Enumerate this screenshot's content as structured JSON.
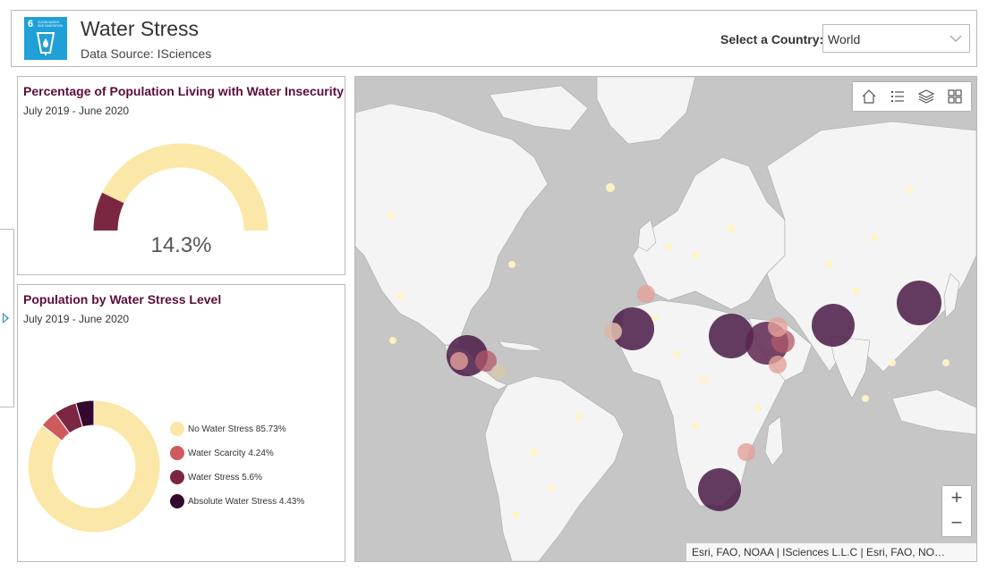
{
  "header": {
    "title": "Water Stress",
    "subtitle": "Data Source: ISciences",
    "logo": {
      "number": "6",
      "text": "CLEAN WATER AND SANITATION",
      "color": "#1fa0d7"
    },
    "country_label": "Select a Country:",
    "country_value": "World"
  },
  "gauge_panel": {
    "title": "Percentage of Population Living with Water Insecurity",
    "period": "July 2019 - June 2020",
    "value_text": "14.3%",
    "value_fraction": 0.143,
    "colors": {
      "filled": "#7b2742",
      "track": "#fbe7a8"
    }
  },
  "donut_panel": {
    "title": "Population by Water Stress Level",
    "period": "July 2019 - June 2020",
    "legend": [
      {
        "label": "No Water Stress  85.73%",
        "color": "#fbe7a8"
      },
      {
        "label": "Water Scarcity  4.24%",
        "color": "#cf5a5e"
      },
      {
        "label": "Water Stress  5.6%",
        "color": "#7b2742"
      },
      {
        "label": "Absolute Water Stress  4.43%",
        "color": "#330a2e"
      }
    ]
  },
  "chart_data": {
    "type": "pie",
    "title": "Population by Water Stress Level",
    "categories": [
      "No Water Stress",
      "Water Scarcity",
      "Water Stress",
      "Absolute Water Stress"
    ],
    "values": [
      85.73,
      4.24,
      5.6,
      4.43
    ],
    "colors": [
      "#fbe7a8",
      "#cf5a5e",
      "#7b2742",
      "#330a2e"
    ]
  },
  "map": {
    "toolbar": [
      {
        "name": "home-icon"
      },
      {
        "name": "legend-list-icon"
      },
      {
        "name": "layers-icon"
      },
      {
        "name": "basemap-gallery-icon"
      }
    ],
    "zoom_in": "+",
    "zoom_out": "−",
    "attribution": "Esri, FAO, NOAA | ISciences L.L.C | Esri, FAO, NO…",
    "colors": {
      "ocean": "#c6c6c6",
      "land": "#f4f4f4",
      "absolute": "#4a1a45",
      "stress": "#b25a6a",
      "scarcity": "#e3a09a",
      "none": "#fff6c2"
    }
  },
  "side_toggle": {
    "icon": "expand-arrow-icon"
  }
}
